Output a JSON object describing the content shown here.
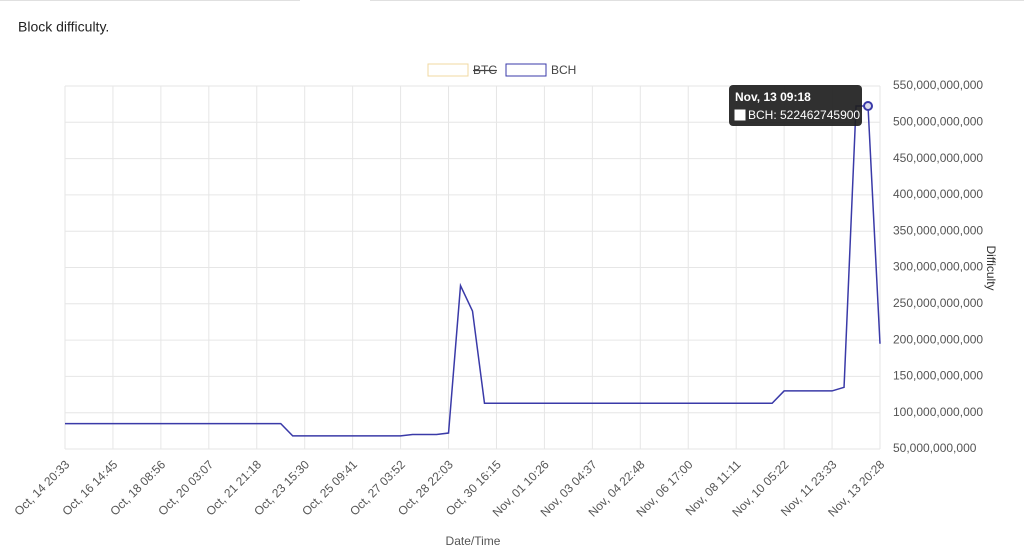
{
  "page_title": "Block difficulty.",
  "chart_data": {
    "type": "line",
    "x_label": "Date/Time",
    "y_label": "Difficulty",
    "categories": [
      "Oct, 14 20:33",
      null,
      null,
      null,
      "Oct, 16 14:45",
      null,
      null,
      null,
      "Oct, 18 08:56",
      null,
      null,
      null,
      "Oct, 20 03:07",
      null,
      null,
      null,
      "Oct, 21 21:18",
      null,
      null,
      null,
      "Oct, 23 15:30",
      null,
      null,
      null,
      "Oct, 25 09:41",
      null,
      null,
      null,
      "Oct, 27 03:52",
      null,
      null,
      null,
      "Oct, 28 22:03",
      null,
      null,
      null,
      "Oct, 30 16:15",
      null,
      null,
      null,
      "Nov, 01 10:26",
      null,
      null,
      null,
      "Nov, 03 04:37",
      null,
      null,
      null,
      "Nov, 04 22:48",
      null,
      null,
      null,
      "Nov, 06 17:00",
      null,
      null,
      null,
      "Nov, 08 11:11",
      null,
      null,
      null,
      "Nov, 10 05:22",
      null,
      null,
      null,
      "Nov, 11 23:33",
      null,
      null,
      null,
      "Nov, 13 20:28"
    ],
    "series": [
      {
        "name": "BTC",
        "color": "#f0d9a0",
        "hidden": true,
        "values": [
          null,
          null,
          null,
          null,
          null,
          null,
          null,
          null,
          null,
          null,
          null,
          null,
          null,
          null,
          null,
          null,
          null,
          null,
          null,
          null,
          null,
          null,
          null,
          null,
          null,
          null,
          null,
          null,
          null,
          null,
          null,
          null,
          null,
          null,
          null,
          null,
          null,
          null,
          null,
          null,
          null,
          null,
          null,
          null,
          null,
          null,
          null,
          null,
          null,
          null,
          null,
          null,
          null,
          null,
          null,
          null,
          null,
          null,
          null,
          null,
          null,
          null,
          null,
          null,
          null,
          null,
          null,
          null,
          null
        ]
      },
      {
        "name": "BCH",
        "color": "#3a3aa8",
        "hidden": false,
        "values": [
          85000000000,
          85000000000,
          85000000000,
          85000000000,
          85000000000,
          85000000000,
          85000000000,
          85000000000,
          85000000000,
          85000000000,
          85000000000,
          85000000000,
          85000000000,
          85000000000,
          85000000000,
          85000000000,
          85000000000,
          85000000000,
          85000000000,
          68000000000,
          68000000000,
          68000000000,
          68000000000,
          68000000000,
          68000000000,
          68000000000,
          68000000000,
          68000000000,
          68000000000,
          70000000000,
          70000000000,
          70000000000,
          72000000000,
          275000000000,
          240000000000,
          113000000000,
          113000000000,
          113000000000,
          113000000000,
          113000000000,
          113000000000,
          113000000000,
          113000000000,
          113000000000,
          113000000000,
          113000000000,
          113000000000,
          113000000000,
          113000000000,
          113000000000,
          113000000000,
          113000000000,
          113000000000,
          113000000000,
          113000000000,
          113000000000,
          113000000000,
          113000000000,
          113000000000,
          113000000000,
          130000000000,
          130000000000,
          130000000000,
          130000000000,
          130000000000,
          135000000000,
          522462745900,
          522462745900,
          195000000000
        ]
      }
    ],
    "ylim": [
      50000000000,
      550000000000
    ],
    "yticks": [
      {
        "value": 50000000000,
        "label": "50,000,000,000"
      },
      {
        "value": 100000000000,
        "label": "100,000,000,000"
      },
      {
        "value": 150000000000,
        "label": "150,000,000,000"
      },
      {
        "value": 200000000000,
        "label": "200,000,000,000"
      },
      {
        "value": 250000000000,
        "label": "250,000,000,000"
      },
      {
        "value": 300000000000,
        "label": "300,000,000,000"
      },
      {
        "value": 350000000000,
        "label": "350,000,000,000"
      },
      {
        "value": 400000000000,
        "label": "400,000,000,000"
      },
      {
        "value": 450000000000,
        "label": "450,000,000,000"
      },
      {
        "value": 500000000000,
        "label": "500,000,000,000"
      },
      {
        "value": 550000000000,
        "label": "550,000,000,000"
      }
    ],
    "grid": true,
    "legend": "top",
    "tooltip": {
      "index": 67,
      "title": "Nov, 13 09:18",
      "label": "BCH: 522462745900"
    }
  }
}
